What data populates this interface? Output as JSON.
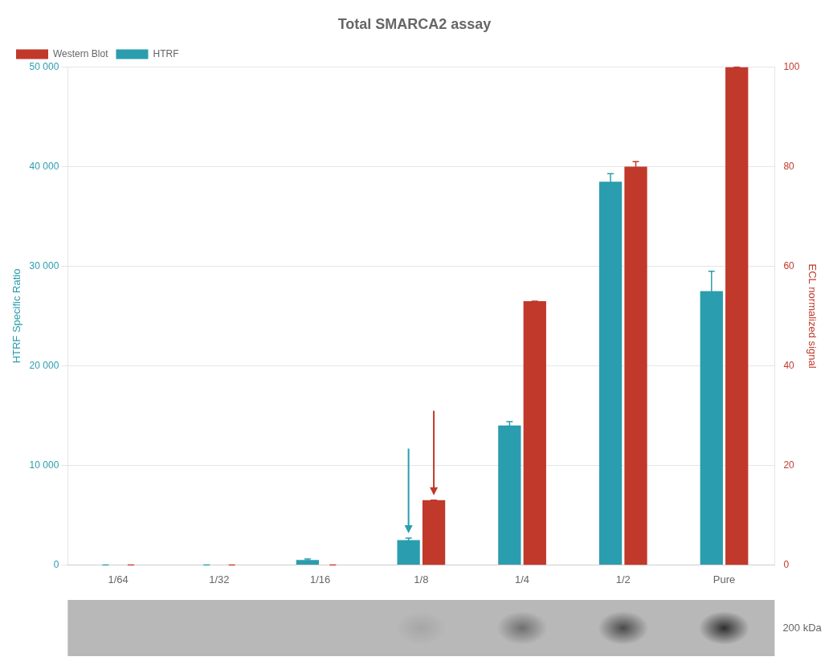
{
  "chart_data": {
    "type": "bar",
    "title": "Total SMARCA2 assay",
    "categories": [
      "1/64",
      "1/32",
      "1/16",
      "1/8",
      "1/4",
      "1/2",
      "Pure"
    ],
    "series": [
      {
        "name": "HTRF",
        "color": "#2A9DAE",
        "values": [
          0,
          0,
          500,
          2500,
          14000,
          38500,
          27500
        ],
        "errors": [
          0,
          0,
          100,
          200,
          400,
          800,
          2000
        ]
      },
      {
        "name": "Western Blot",
        "color": "#C0392B",
        "values": [
          0,
          0,
          0,
          13,
          53,
          80,
          100
        ],
        "errors": [
          0,
          0,
          0,
          0,
          0,
          1,
          0
        ],
        "axis": "y2"
      }
    ],
    "ylabel": "HTRF Specific Ratio",
    "y2label": "ECL normalized signal",
    "ylim": [
      0,
      50000
    ],
    "yticks": [
      0,
      {
        "value": 10000,
        "label": "10 000"
      },
      {
        "value": 20000,
        "label": "20 000"
      },
      {
        "value": 30000,
        "label": "30 000"
      },
      {
        "value": 40000,
        "label": "40 000"
      },
      {
        "value": 50000,
        "label": "50 000"
      }
    ],
    "y2lim": [
      0,
      100
    ],
    "y2ticks": [
      0,
      20,
      40,
      60,
      80,
      100
    ],
    "grid": true,
    "legend": "upper left",
    "annotations": [
      {
        "type": "arrow",
        "x": "1/8",
        "series": "HTRF"
      },
      {
        "type": "arrow",
        "x": "1/8",
        "series": "Western Blot"
      },
      {
        "text": "200 kDa"
      }
    ]
  }
}
